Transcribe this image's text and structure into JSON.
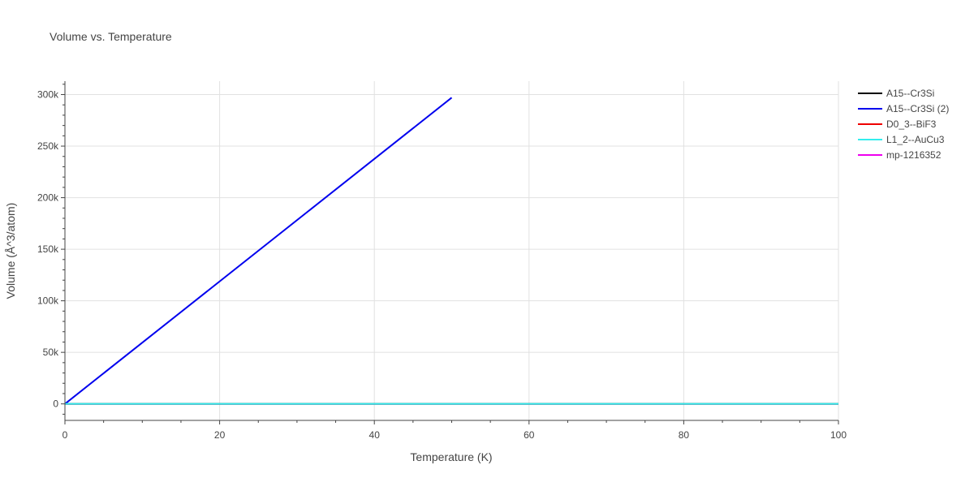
{
  "chart_data": {
    "type": "line",
    "title": "Volume vs. Temperature",
    "xlabel": "Temperature (K)",
    "ylabel": "Volume (Å^3/atom)",
    "xlim": [
      0,
      100
    ],
    "ylim": [
      -16000,
      313000
    ],
    "x_ticks": [
      0,
      20,
      40,
      60,
      80,
      100
    ],
    "x_tick_labels": [
      "0",
      "20",
      "40",
      "60",
      "80",
      "100"
    ],
    "y_ticks": [
      0,
      50000,
      100000,
      150000,
      200000,
      250000,
      300000
    ],
    "y_tick_labels": [
      "0",
      "50k",
      "100k",
      "150k",
      "200k",
      "250k",
      "300k"
    ],
    "grid": true,
    "legend_position": "right",
    "series": [
      {
        "name": "A15--Cr3Si",
        "color": "#000000",
        "x": [
          0,
          100
        ],
        "y": [
          0,
          0
        ]
      },
      {
        "name": "A15--Cr3Si (2)",
        "color": "#0000ee",
        "x": [
          0,
          50
        ],
        "y": [
          0,
          297000
        ]
      },
      {
        "name": "D0_3--BiF3",
        "color": "#ee0000",
        "x": [
          0,
          100
        ],
        "y": [
          0,
          0
        ]
      },
      {
        "name": "L1_2--AuCu3",
        "color": "#33eeee",
        "x": [
          0,
          100
        ],
        "y": [
          0,
          0
        ]
      },
      {
        "name": "mp-1216352",
        "color": "#ee00ee",
        "x": [
          0,
          100
        ],
        "y": [
          0,
          0
        ]
      }
    ],
    "draw_order": [
      4,
      2,
      0,
      1,
      3
    ]
  }
}
